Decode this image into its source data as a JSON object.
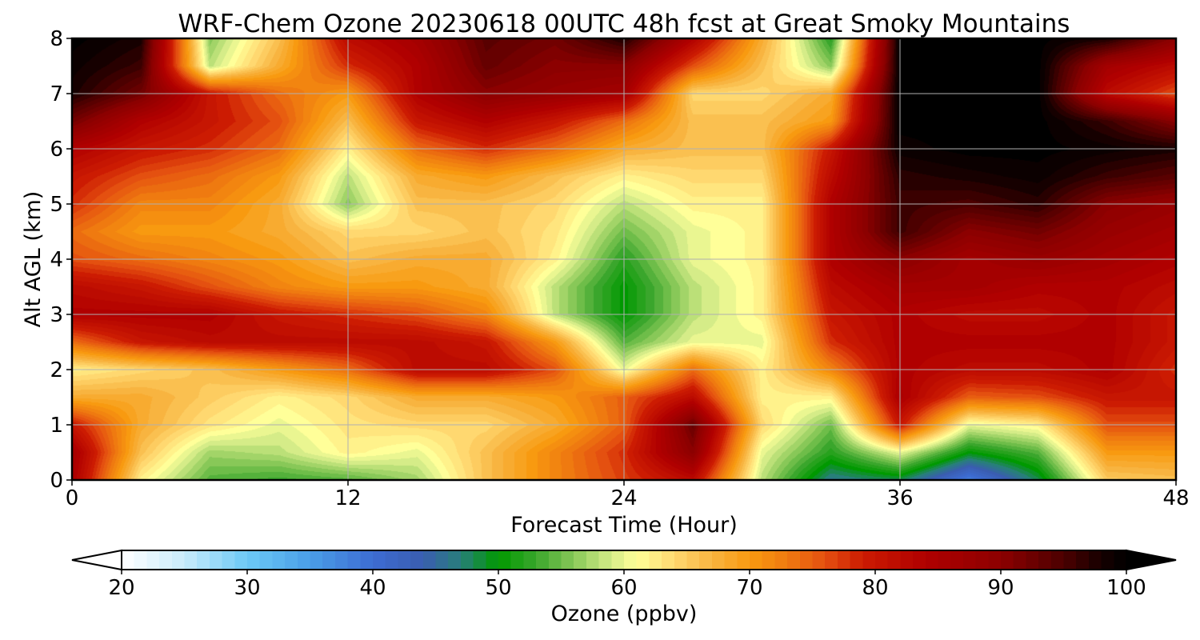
{
  "chart_data": {
    "type": "heatmap",
    "title": "WRF-Chem Ozone  20230618 00UTC 48h fcst at Great Smoky Mountains",
    "xlabel": "Forecast Time (Hour)",
    "ylabel": "Alt AGL (km)",
    "xlim": [
      0,
      48
    ],
    "ylim": [
      0,
      8
    ],
    "x_ticks": [
      "0",
      "12",
      "24",
      "36",
      "48"
    ],
    "y_ticks": [
      "0",
      "1",
      "2",
      "3",
      "4",
      "5",
      "6",
      "7",
      "8"
    ],
    "grid": true,
    "x": [
      0,
      3,
      6,
      9,
      12,
      15,
      18,
      21,
      24,
      27,
      30,
      33,
      36,
      39,
      42,
      45,
      48
    ],
    "y": [
      0,
      0.5,
      1,
      1.5,
      2,
      2.5,
      3,
      3.5,
      4,
      4.5,
      5,
      5.5,
      6,
      6.5,
      7,
      7.5,
      8
    ],
    "z": [
      [
        85,
        62,
        54,
        53,
        54,
        57,
        66,
        72,
        77,
        82,
        58,
        46,
        48,
        38,
        48,
        65,
        66
      ],
      [
        86,
        66,
        57,
        58,
        62,
        60,
        66,
        72,
        78,
        90,
        60,
        52,
        60,
        50,
        54,
        70,
        70
      ],
      [
        80,
        68,
        63,
        60,
        63,
        64,
        64,
        68,
        75,
        93,
        64,
        55,
        80,
        60,
        62,
        76,
        76
      ],
      [
        68,
        68,
        65,
        62,
        64,
        68,
        68,
        70,
        75,
        82,
        62,
        62,
        85,
        75,
        76,
        80,
        80
      ],
      [
        62,
        64,
        66,
        70,
        74,
        82,
        82,
        76,
        60,
        74,
        62,
        72,
        84,
        82,
        82,
        84,
        78
      ],
      [
        74,
        80,
        82,
        82,
        82,
        82,
        80,
        70,
        54,
        60,
        60,
        78,
        84,
        84,
        84,
        84,
        80
      ],
      [
        84,
        84,
        84,
        80,
        78,
        76,
        72,
        58,
        50,
        58,
        62,
        80,
        84,
        82,
        82,
        84,
        80
      ],
      [
        82,
        80,
        76,
        72,
        70,
        70,
        68,
        58,
        50,
        58,
        62,
        82,
        86,
        86,
        84,
        84,
        82
      ],
      [
        76,
        74,
        72,
        70,
        66,
        68,
        68,
        62,
        52,
        60,
        62,
        84,
        90,
        86,
        88,
        86,
        84
      ],
      [
        74,
        70,
        70,
        68,
        64,
        64,
        66,
        63,
        55,
        60,
        62,
        84,
        96,
        90,
        92,
        88,
        86
      ],
      [
        78,
        72,
        72,
        68,
        56,
        66,
        66,
        64,
        58,
        62,
        62,
        84,
        96,
        95,
        97,
        90,
        88
      ],
      [
        80,
        76,
        74,
        70,
        58,
        68,
        70,
        66,
        62,
        64,
        64,
        82,
        97,
        98,
        99,
        96,
        94
      ],
      [
        84,
        80,
        78,
        74,
        62,
        74,
        78,
        74,
        68,
        66,
        66,
        80,
        99,
        100,
        100,
        99,
        98
      ],
      [
        92,
        84,
        80,
        76,
        66,
        80,
        84,
        80,
        74,
        66,
        66,
        70,
        100,
        100,
        100,
        96,
        90
      ],
      [
        98,
        92,
        80,
        74,
        70,
        84,
        90,
        88,
        86,
        64,
        64,
        68,
        100,
        100,
        100,
        82,
        76
      ],
      [
        99,
        96,
        58,
        68,
        78,
        84,
        93,
        90,
        90,
        76,
        66,
        56,
        100,
        100,
        100,
        86,
        82
      ],
      [
        100,
        98,
        56,
        66,
        82,
        86,
        94,
        92,
        98,
        84,
        68,
        52,
        100,
        100,
        100,
        98,
        90
      ]
    ],
    "colorbar": {
      "label": "Ozone  (ppbv)",
      "min": 20,
      "max": 100,
      "ticks": [
        "20",
        "30",
        "40",
        "50",
        "60",
        "70",
        "80",
        "90",
        "100"
      ],
      "extend": "both",
      "stops": [
        [
          20,
          "#ffffff"
        ],
        [
          25,
          "#c8ebfa"
        ],
        [
          30,
          "#6cc9f5"
        ],
        [
          35,
          "#4a9ee8"
        ],
        [
          40,
          "#3d6cd2"
        ],
        [
          44,
          "#3a5db0"
        ],
        [
          47,
          "#287f7a"
        ],
        [
          50,
          "#009900"
        ],
        [
          53,
          "#3aa62c"
        ],
        [
          56,
          "#88c858"
        ],
        [
          59,
          "#d5ec88"
        ],
        [
          61,
          "#ffff99"
        ],
        [
          64,
          "#ffd870"
        ],
        [
          67,
          "#f8b440"
        ],
        [
          70,
          "#f89a10"
        ],
        [
          73,
          "#ef7a10"
        ],
        [
          76,
          "#e45010"
        ],
        [
          79,
          "#cc1b02"
        ],
        [
          84,
          "#b00000"
        ],
        [
          90,
          "#8c0000"
        ],
        [
          95,
          "#4c0000"
        ],
        [
          98,
          "#160000"
        ],
        [
          100,
          "#000000"
        ]
      ]
    }
  }
}
